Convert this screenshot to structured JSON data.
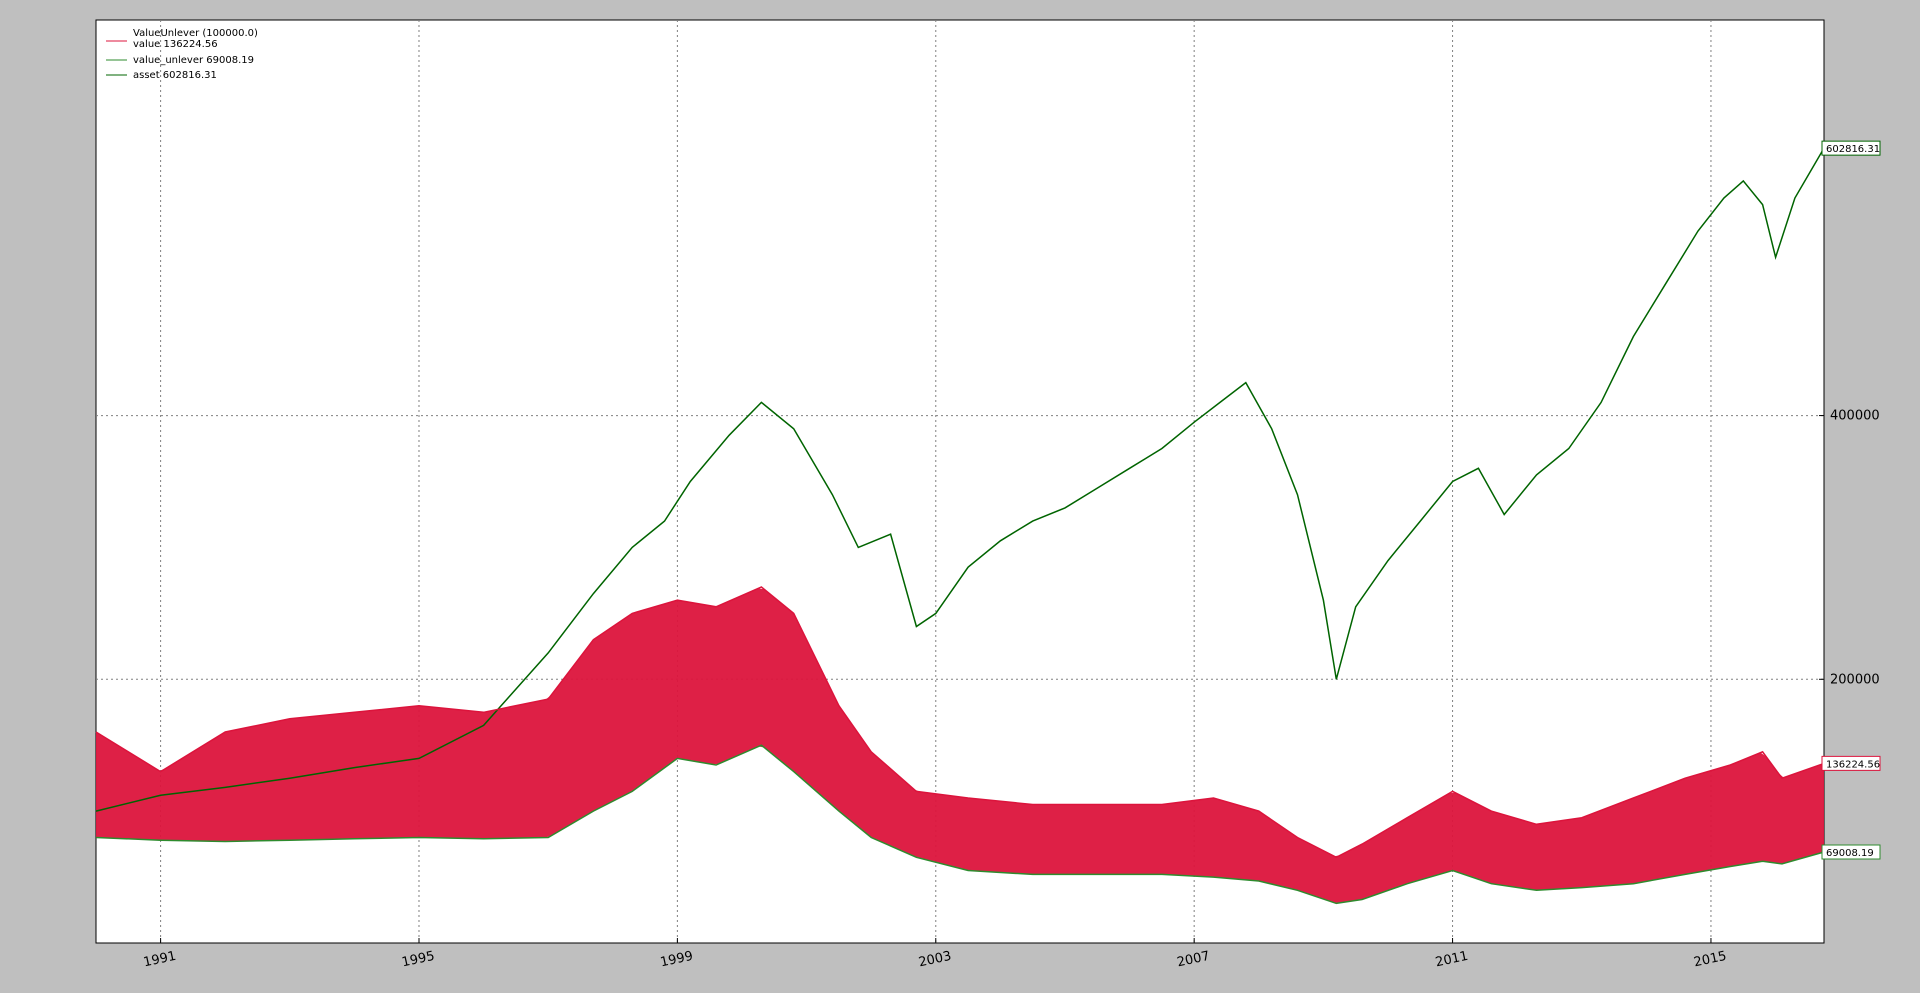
{
  "chart_data": {
    "type": "line",
    "title": "",
    "xlabel": "",
    "ylabel": "",
    "xlim": [
      1990.0,
      2016.75
    ],
    "ylim": [
      0,
      700000
    ],
    "x_ticks": [
      "1991",
      "1995",
      "1999",
      "2003",
      "2007",
      "2011",
      "2015"
    ],
    "y_ticks": [
      200000,
      400000
    ],
    "y_tick_labels": [
      "200000",
      "400000"
    ],
    "grid": true,
    "legend_position": "top-left",
    "legend": {
      "header": "ValueUnlever (100000.0)",
      "entries": [
        {
          "label": "value 136224.56",
          "color": "#dc143c"
        },
        {
          "label": "value_unlever 69008.19",
          "color": "#2e8b2e"
        },
        {
          "label": "asset 602816.31",
          "color": "#006400"
        }
      ]
    },
    "last_value_tags": [
      {
        "label": "602816.31",
        "y": 602816.31,
        "color": "#006400"
      },
      {
        "label": "136224.56",
        "y": 136224.56,
        "color": "#dc143c"
      },
      {
        "label": "69008.19",
        "y": 69008.19,
        "color": "#2e8b2e"
      }
    ],
    "series": [
      {
        "name": "asset",
        "color": "#006400",
        "x": [
          1990.0,
          1991.0,
          1992.0,
          1993.0,
          1994.0,
          1995.0,
          1996.0,
          1997.0,
          1997.7,
          1998.3,
          1998.8,
          1999.2,
          1999.8,
          2000.3,
          2000.8,
          2001.4,
          2001.8,
          2002.3,
          2002.7,
          2003.0,
          2003.5,
          2004.0,
          2004.5,
          2005.0,
          2005.5,
          2006.0,
          2006.5,
          2007.0,
          2007.4,
          2007.8,
          2008.2,
          2008.6,
          2009.0,
          2009.2,
          2009.5,
          2010.0,
          2010.5,
          2011.0,
          2011.4,
          2011.8,
          2012.3,
          2012.8,
          2013.3,
          2013.8,
          2014.3,
          2014.8,
          2015.2,
          2015.5,
          2015.8,
          2016.0,
          2016.3,
          2016.75
        ],
        "y": [
          100000,
          112000,
          118000,
          125000,
          133000,
          140000,
          165000,
          220000,
          265000,
          300000,
          320000,
          350000,
          385000,
          410000,
          390000,
          340000,
          300000,
          310000,
          240000,
          250000,
          285000,
          305000,
          320000,
          330000,
          345000,
          360000,
          375000,
          395000,
          410000,
          425000,
          390000,
          340000,
          260000,
          200000,
          255000,
          290000,
          320000,
          350000,
          360000,
          325000,
          355000,
          375000,
          410000,
          460000,
          500000,
          540000,
          565000,
          578000,
          560000,
          520000,
          565000,
          602816.31
        ]
      },
      {
        "name": "value_unlever",
        "color": "#2e8b2e",
        "x": [
          1990.0,
          1991.0,
          1992.0,
          1993.0,
          1994.0,
          1995.0,
          1996.0,
          1997.0,
          1997.7,
          1998.3,
          1999.0,
          1999.6,
          2000.3,
          2000.8,
          2001.5,
          2002.0,
          2002.7,
          2003.5,
          2004.5,
          2005.5,
          2006.5,
          2007.3,
          2008.0,
          2008.6,
          2009.2,
          2009.6,
          2010.3,
          2011.0,
          2011.6,
          2012.3,
          2013.0,
          2013.8,
          2014.6,
          2015.3,
          2015.8,
          2016.1,
          2016.75
        ],
        "y": [
          80000,
          78000,
          77000,
          78000,
          79000,
          80000,
          79000,
          80000,
          100000,
          115000,
          140000,
          135000,
          150000,
          130000,
          100000,
          80000,
          65000,
          55000,
          52000,
          52000,
          52000,
          50000,
          47000,
          40000,
          30000,
          33000,
          45000,
          55000,
          45000,
          40000,
          42000,
          45000,
          52000,
          58000,
          62000,
          60000,
          69008.19
        ]
      },
      {
        "name": "value",
        "color": "#dc143c",
        "x": [
          1990.0,
          1991.0,
          1992.0,
          1993.0,
          1994.0,
          1995.0,
          1996.0,
          1997.0,
          1997.7,
          1998.3,
          1999.0,
          1999.6,
          2000.3,
          2000.8,
          2001.5,
          2002.0,
          2002.7,
          2003.5,
          2004.5,
          2005.5,
          2006.5,
          2007.3,
          2008.0,
          2008.6,
          2009.2,
          2009.6,
          2010.3,
          2011.0,
          2011.6,
          2012.3,
          2013.0,
          2013.8,
          2014.6,
          2015.3,
          2015.8,
          2016.1,
          2016.75
        ],
        "y": [
          160000,
          130000,
          160000,
          170000,
          175000,
          180000,
          175000,
          185000,
          230000,
          250000,
          260000,
          255000,
          270000,
          250000,
          180000,
          145000,
          115000,
          110000,
          105000,
          105000,
          105000,
          110000,
          100000,
          80000,
          65000,
          75000,
          95000,
          115000,
          100000,
          90000,
          95000,
          110000,
          125000,
          135000,
          145000,
          125000,
          136224.56
        ]
      }
    ]
  }
}
